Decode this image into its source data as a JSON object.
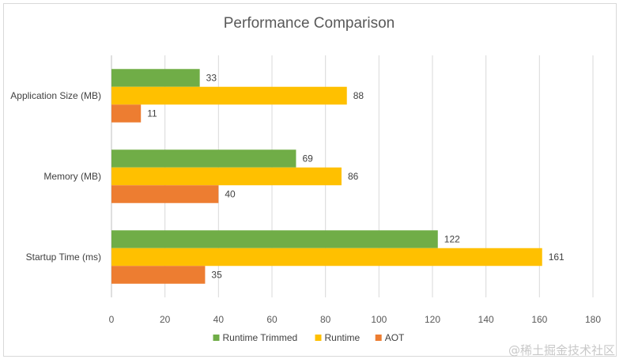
{
  "chart_data": {
    "type": "bar",
    "orientation": "horizontal",
    "title": "Performance Comparison",
    "categories": [
      "Application Size (MB)",
      "Memory (MB)",
      "Startup Time (ms)"
    ],
    "series": [
      {
        "name": "Runtime Trimmed",
        "color": "#70ad47",
        "values": [
          33,
          69,
          122
        ]
      },
      {
        "name": "Runtime",
        "color": "#ffc000",
        "values": [
          88,
          86,
          161
        ]
      },
      {
        "name": "AOT",
        "color": "#ed7d31",
        "values": [
          11,
          40,
          35
        ]
      }
    ],
    "xlim": [
      0,
      180
    ],
    "xticks": [
      0,
      20,
      40,
      60,
      80,
      100,
      120,
      140,
      160,
      180
    ],
    "grid": true,
    "legend_position": "bottom"
  },
  "watermark": "@稀土掘金技术社区"
}
